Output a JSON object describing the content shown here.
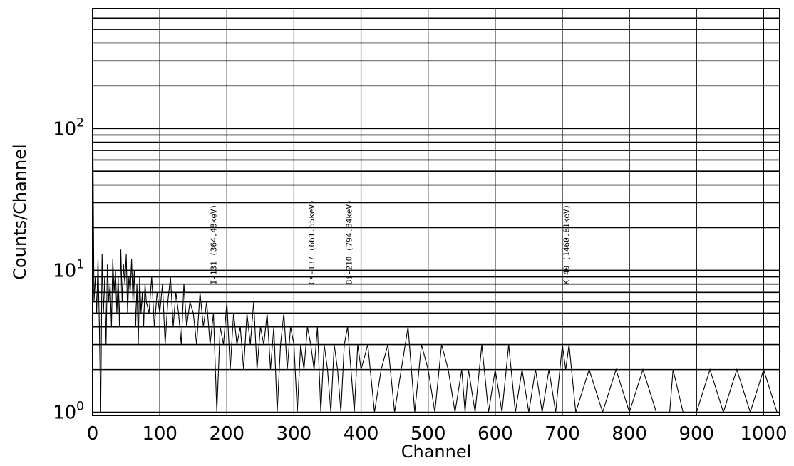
{
  "chart_data": {
    "type": "line",
    "title": "",
    "xlabel": "Channel",
    "ylabel": "Counts/Channel",
    "xscale": "linear",
    "yscale": "log",
    "xlim": [
      0,
      1024
    ],
    "ylim": [
      0.95,
      700
    ],
    "x_ticks": [
      "0",
      "100",
      "200",
      "300",
      "400",
      "500",
      "600",
      "700",
      "800",
      "900",
      "1000"
    ],
    "y_ticks": [
      {
        "value": 1,
        "base": "10",
        "exp": "0"
      },
      {
        "value": 10,
        "base": "10",
        "exp": "1"
      },
      {
        "value": 100,
        "base": "10",
        "exp": "2"
      }
    ],
    "grid": true,
    "grid_color": "#000000",
    "line_color": "#000000",
    "horizontal_lines": [
      1,
      2,
      3,
      4,
      5,
      6,
      7,
      8,
      9,
      10,
      20,
      30,
      40,
      50,
      60,
      70,
      80,
      90,
      100,
      200,
      300,
      400,
      500,
      600,
      700
    ],
    "peak_labels": [
      {
        "channel": 180,
        "text": "I-131 (364.48keV)"
      },
      {
        "channel": 326,
        "text": "Cs-137 (661.65keV)"
      },
      {
        "channel": 382,
        "text": "Bi-210 (794.84keV)"
      },
      {
        "channel": 706,
        "text": "K-40 (1460.81keV)"
      }
    ],
    "series": [
      {
        "x": [
          0,
          2,
          4,
          6,
          8,
          10,
          12,
          14,
          16,
          18,
          20,
          22,
          24,
          26,
          28,
          30,
          32,
          34,
          36,
          38,
          40,
          42,
          44,
          46,
          48,
          50,
          52,
          54,
          56,
          58,
          60,
          62,
          64,
          66,
          68,
          70,
          72,
          74,
          76,
          78,
          80,
          84,
          88,
          92,
          96,
          100,
          104,
          108,
          112,
          116,
          120,
          124,
          128,
          132,
          136,
          140,
          145,
          150,
          155,
          160,
          165,
          170,
          175,
          180,
          185,
          190,
          195,
          200,
          205,
          210,
          215,
          220,
          225,
          230,
          235,
          240,
          245,
          250,
          255,
          260,
          265,
          270,
          275,
          280,
          285,
          290,
          295,
          300,
          305,
          310,
          315,
          320,
          325,
          330,
          335,
          340,
          345,
          350,
          355,
          360,
          365,
          370,
          375,
          380,
          385,
          390,
          395,
          400,
          410,
          420,
          430,
          440,
          450,
          460,
          470,
          480,
          490,
          500,
          510,
          520,
          530,
          540,
          550,
          555,
          560,
          570,
          580,
          590,
          600,
          610,
          620,
          630,
          640,
          650,
          660,
          670,
          680,
          690,
          700,
          705,
          710,
          720,
          740,
          760,
          780,
          800,
          820,
          840,
          860,
          865,
          880,
          900,
          920,
          940,
          960,
          980,
          1000,
          1020
        ],
        "y": [
          160,
          6,
          9,
          5,
          12,
          4,
          1,
          13,
          5,
          9,
          3,
          11,
          6,
          8,
          4,
          12,
          7,
          10,
          5,
          9,
          4,
          14,
          6,
          11,
          8,
          13,
          5,
          9,
          7,
          12,
          6,
          10,
          4,
          8,
          3,
          9,
          5,
          7,
          4,
          8,
          6,
          5,
          9,
          4,
          7,
          5,
          8,
          3,
          6,
          9,
          4,
          7,
          5,
          3,
          8,
          4,
          6,
          5,
          3,
          7,
          4,
          6,
          3,
          5,
          1,
          4,
          3,
          6,
          2,
          5,
          3,
          4,
          2,
          5,
          3,
          6,
          2,
          4,
          3,
          5,
          2,
          4,
          1,
          3,
          5,
          2,
          4,
          3,
          1,
          3,
          2,
          4,
          3,
          2,
          4,
          1,
          3,
          2,
          1,
          3,
          2,
          1,
          3,
          4,
          2,
          1,
          3,
          2,
          3,
          1,
          2,
          3,
          1,
          2,
          4,
          1,
          3,
          2,
          1,
          3,
          2,
          1,
          2,
          1,
          2,
          1,
          3,
          1,
          2,
          1,
          3,
          1,
          2,
          1,
          2,
          1,
          2,
          1,
          3,
          2,
          3,
          1,
          2,
          1,
          2,
          1,
          2,
          1,
          1,
          2,
          1,
          1,
          2,
          1,
          2,
          1,
          2,
          1
        ]
      }
    ]
  }
}
